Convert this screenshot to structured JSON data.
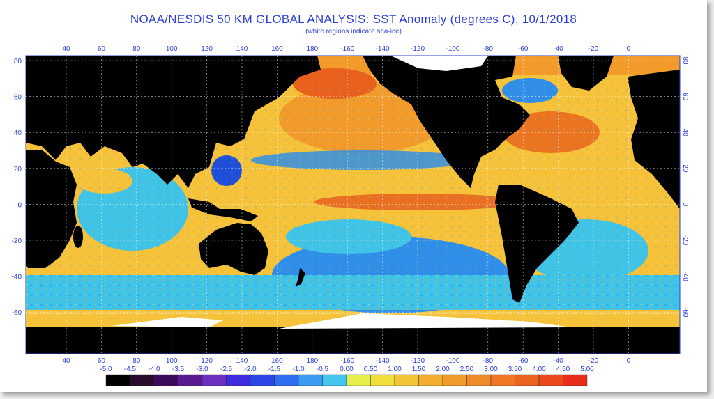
{
  "title": "NOAA/NESDIS 50 KM GLOBAL ANALYSIS: SST Anomaly (degrees C), 10/1/2018",
  "subtitle": "(white regions indicate sea-ice)",
  "map": {
    "lon_top_labels": [
      "40",
      "60",
      "80",
      "100",
      "120",
      "140",
      "160",
      "180",
      "-160",
      "-140",
      "-120",
      "-100",
      "-80",
      "-60",
      "-40",
      "-20",
      "0"
    ],
    "lon_bottom_labels": [
      "40",
      "60",
      "80",
      "100",
      "120",
      "140",
      "160",
      "180",
      "-160",
      "-140",
      "-120",
      "-100",
      "-80",
      "-60",
      "-40",
      "-20",
      "0"
    ],
    "lat_left_labels": [
      "80",
      "60",
      "40",
      "20",
      "0",
      "-20",
      "-40",
      "-60"
    ],
    "lat_right_labels": [
      "80",
      "60",
      "40",
      "20",
      "0",
      "-20",
      "-40",
      "-60"
    ],
    "ocean_colors": {
      "cold_deep": "#1f4ed8",
      "cold": "#2f8fe8",
      "cool": "#3fc3e6",
      "neutral": "#d8e86a",
      "warm": "#f5c23a",
      "warmer": "#f29a2a",
      "hot": "#e8601c"
    },
    "land_color": "#000000",
    "ice_color": "#ffffff"
  },
  "colorbar": {
    "labels": [
      "-5.0",
      "-4.5",
      "-4.0",
      "-3.5",
      "-3.0",
      "-2.5",
      "-2.0",
      "-1.5",
      "-1.0",
      "-0.5",
      "0.00",
      "0.50",
      "1.00",
      "1.50",
      "2.00",
      "2.50",
      "3.00",
      "3.50",
      "4.00",
      "4.50",
      "5.00"
    ],
    "colors": [
      "#000000",
      "#2a0b2c",
      "#3d0b5c",
      "#5a1a90",
      "#6c2fc0",
      "#3d2dde",
      "#2d47e6",
      "#2f6ef0",
      "#3a9bf0",
      "#45c6f0",
      "#e6f04a",
      "#f0de3c",
      "#f2c437",
      "#f2ae2e",
      "#f09b2a",
      "#ee8a27",
      "#ee7624",
      "#ec6221",
      "#eb4a1e",
      "#ea2c1c"
    ]
  }
}
